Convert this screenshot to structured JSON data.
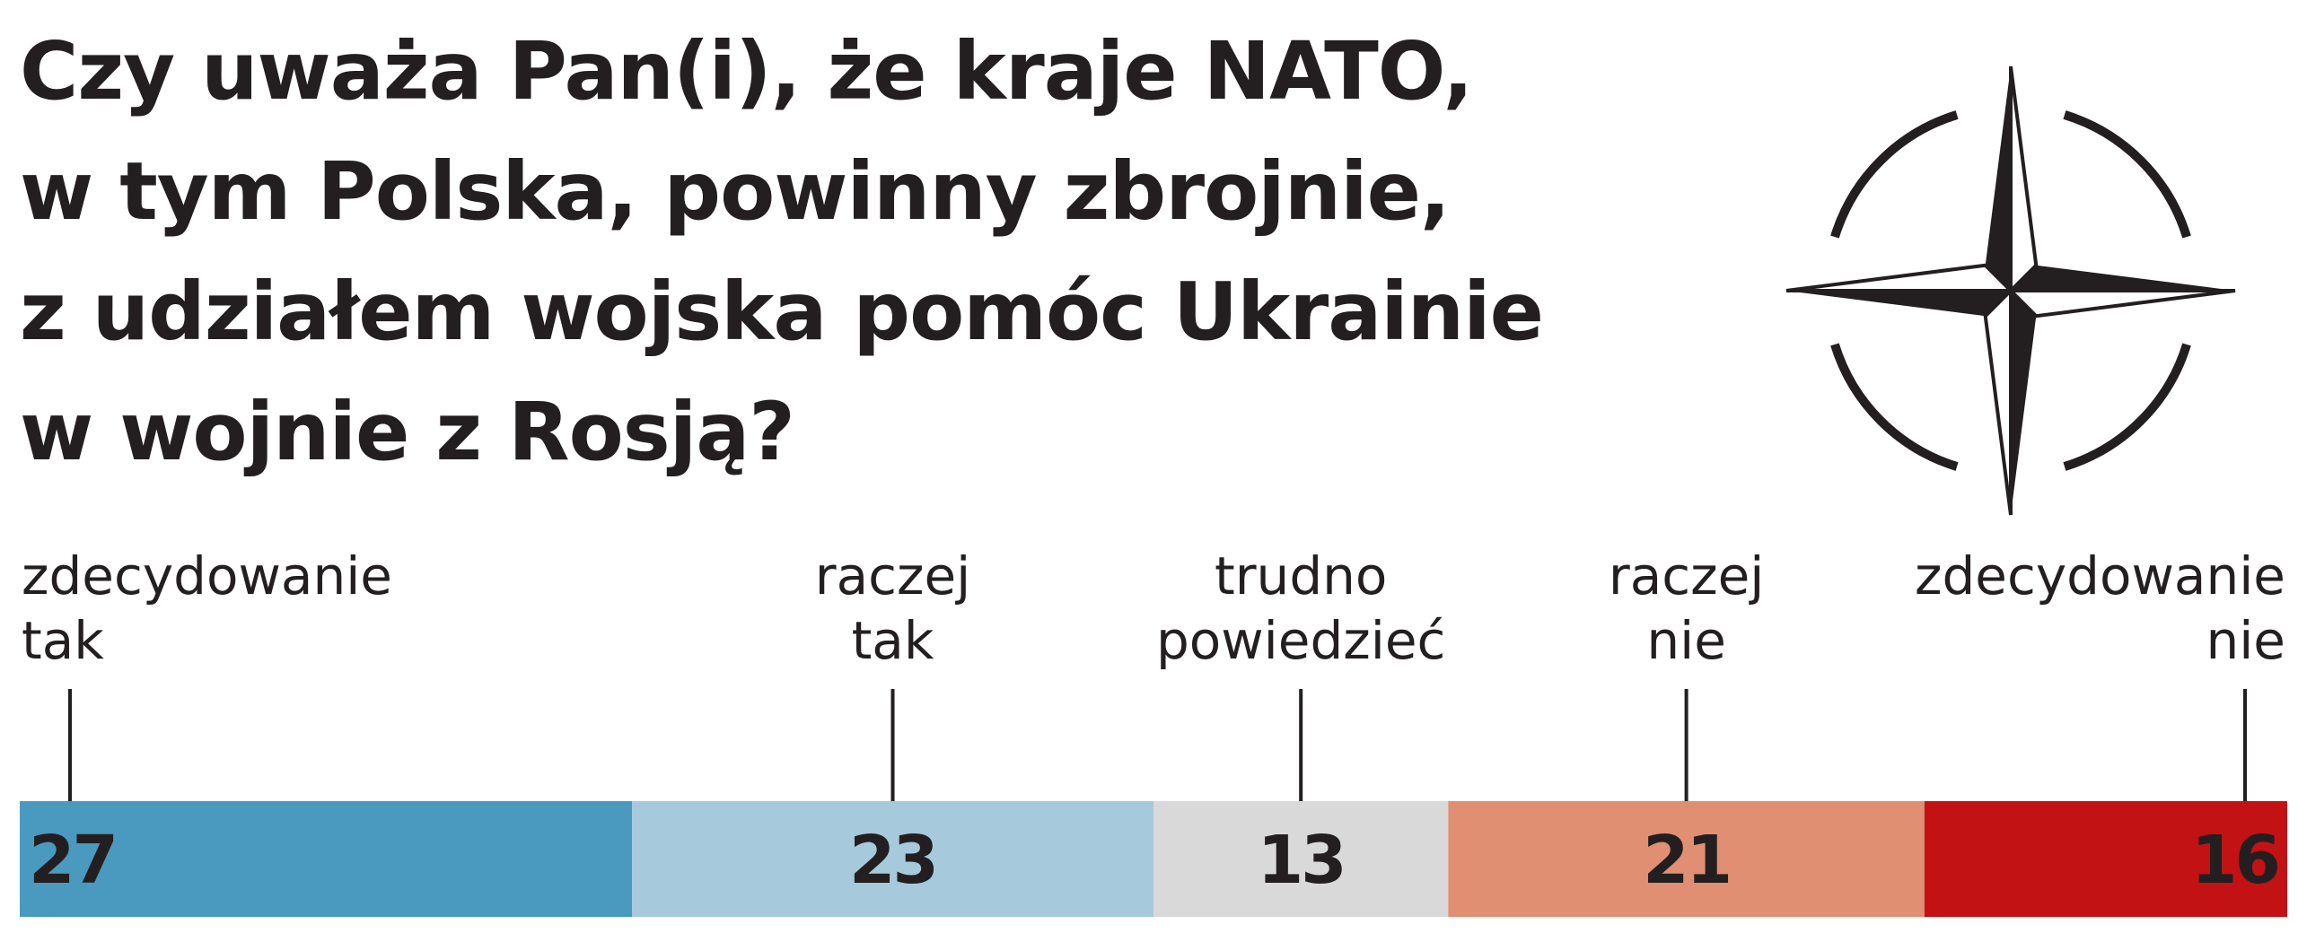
{
  "title_lines": [
    "Czy uważa Pan(i), że kraje NATO,",
    "w tym Polska, powinny zbrojnie,",
    "z udziałem wojska pomóc Ukrainie",
    "w wojnie z Rosją?"
  ],
  "emblem": {
    "icon": "nato-compass-star-icon",
    "color": "#231f20"
  },
  "chart_data": {
    "type": "bar",
    "orientation": "horizontal-stacked-100",
    "title": "Czy uważa Pan(i), że kraje NATO, w tym Polska, powinny zbrojnie, z udziałem wojska pomóc Ukrainie w wojnie z Rosją?",
    "unit": "%",
    "categories": [
      {
        "label_lines": [
          "zdecydowanie",
          "tak"
        ],
        "value": 27,
        "color": "#4a9abf",
        "label_align": "left"
      },
      {
        "label_lines": [
          "raczej",
          "tak"
        ],
        "value": 23,
        "color": "#a6c9dc",
        "label_align": "center"
      },
      {
        "label_lines": [
          "trudno",
          "powiedzieć"
        ],
        "value": 13,
        "color": "#d9d9d9",
        "label_align": "center"
      },
      {
        "label_lines": [
          "raczej",
          "nie"
        ],
        "value": 21,
        "color": "#e08f72",
        "label_align": "center"
      },
      {
        "label_lines": [
          "zdecydowanie",
          "nie"
        ],
        "value": 16,
        "color": "#c21214",
        "label_align": "right"
      }
    ],
    "xlim": [
      0,
      100
    ],
    "grid": false,
    "legend": "none"
  }
}
